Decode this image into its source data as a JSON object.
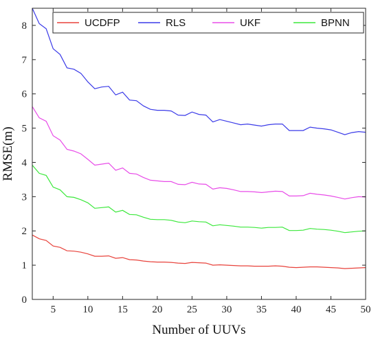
{
  "chart_data": {
    "type": "line",
    "xlabel": "Number of UUVs",
    "ylabel": "RMSE(m)",
    "xlim": [
      2,
      50
    ],
    "ylim": [
      0,
      8.5
    ],
    "xticks": [
      5,
      10,
      15,
      20,
      25,
      30,
      35,
      40,
      45,
      50
    ],
    "yticks": [
      0,
      1,
      2,
      3,
      4,
      5,
      6,
      7,
      8
    ],
    "grid": false,
    "legend_position": "top",
    "x": [
      2,
      3,
      4,
      5,
      6,
      7,
      8,
      9,
      10,
      11,
      12,
      13,
      14,
      15,
      16,
      17,
      18,
      19,
      20,
      21,
      22,
      23,
      24,
      25,
      26,
      27,
      28,
      29,
      30,
      31,
      32,
      33,
      34,
      35,
      36,
      37,
      38,
      39,
      40,
      41,
      42,
      43,
      44,
      45,
      46,
      47,
      48,
      49,
      50
    ],
    "series": [
      {
        "name": "UCDFP",
        "color": "#e8413a",
        "values": [
          1.88,
          1.77,
          1.72,
          1.56,
          1.52,
          1.42,
          1.41,
          1.38,
          1.33,
          1.26,
          1.26,
          1.27,
          1.2,
          1.22,
          1.16,
          1.15,
          1.12,
          1.1,
          1.09,
          1.09,
          1.08,
          1.06,
          1.05,
          1.08,
          1.07,
          1.06,
          1.0,
          1.01,
          1.0,
          0.99,
          0.98,
          0.98,
          0.97,
          0.97,
          0.97,
          0.98,
          0.97,
          0.94,
          0.93,
          0.94,
          0.95,
          0.95,
          0.94,
          0.93,
          0.92,
          0.9,
          0.91,
          0.92,
          0.93
        ]
      },
      {
        "name": "RLS",
        "color": "#3a3ae8",
        "values": [
          8.5,
          8.05,
          7.9,
          7.32,
          7.15,
          6.76,
          6.72,
          6.6,
          6.35,
          6.15,
          6.2,
          6.22,
          5.97,
          6.05,
          5.82,
          5.8,
          5.65,
          5.55,
          5.52,
          5.52,
          5.5,
          5.38,
          5.37,
          5.47,
          5.4,
          5.38,
          5.18,
          5.25,
          5.2,
          5.15,
          5.1,
          5.12,
          5.09,
          5.06,
          5.1,
          5.12,
          5.12,
          4.93,
          4.93,
          4.93,
          5.03,
          5.0,
          4.98,
          4.95,
          4.88,
          4.81,
          4.87,
          4.9,
          4.88
        ]
      },
      {
        "name": "UKF",
        "color": "#e84be8",
        "values": [
          5.63,
          5.3,
          5.2,
          4.78,
          4.65,
          4.38,
          4.33,
          4.25,
          4.09,
          3.92,
          3.95,
          3.98,
          3.77,
          3.84,
          3.68,
          3.66,
          3.56,
          3.48,
          3.46,
          3.44,
          3.44,
          3.36,
          3.35,
          3.42,
          3.37,
          3.36,
          3.22,
          3.26,
          3.24,
          3.2,
          3.15,
          3.15,
          3.14,
          3.12,
          3.14,
          3.16,
          3.15,
          3.02,
          3.02,
          3.03,
          3.1,
          3.07,
          3.05,
          3.02,
          2.98,
          2.93,
          2.97,
          3.0,
          2.99
        ]
      },
      {
        "name": "BPNN",
        "color": "#3ae83a",
        "values": [
          3.92,
          3.68,
          3.62,
          3.28,
          3.2,
          3.0,
          2.98,
          2.91,
          2.82,
          2.66,
          2.68,
          2.7,
          2.55,
          2.6,
          2.48,
          2.47,
          2.4,
          2.34,
          2.33,
          2.33,
          2.31,
          2.26,
          2.24,
          2.29,
          2.27,
          2.26,
          2.15,
          2.18,
          2.16,
          2.14,
          2.11,
          2.11,
          2.1,
          2.08,
          2.1,
          2.1,
          2.11,
          2.01,
          2.01,
          2.02,
          2.07,
          2.05,
          2.04,
          2.02,
          1.99,
          1.95,
          1.97,
          1.99,
          2.0
        ]
      }
    ]
  }
}
